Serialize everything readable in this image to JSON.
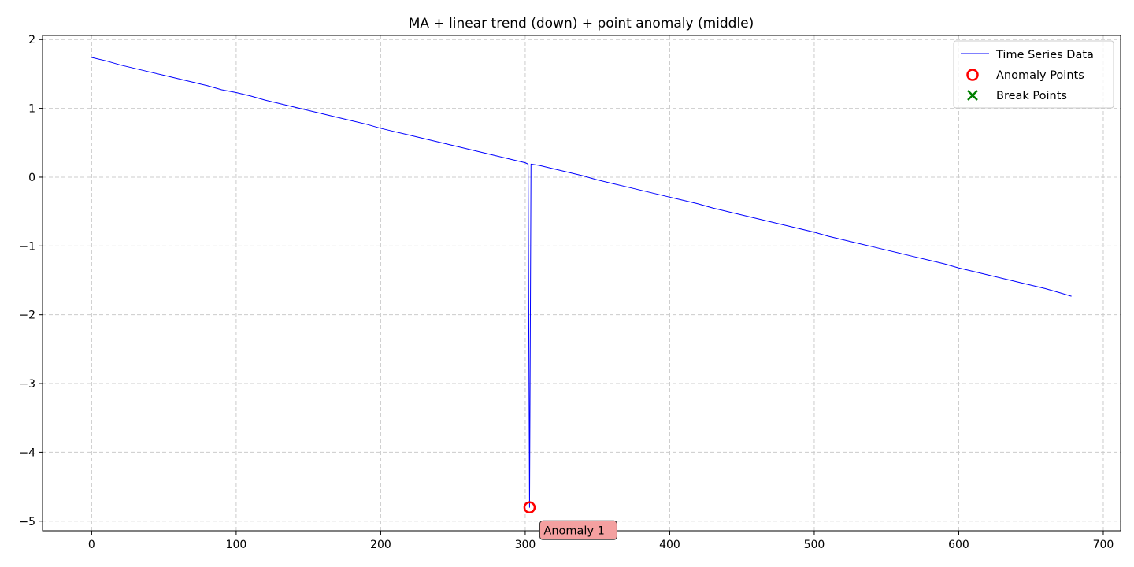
{
  "chart_data": {
    "type": "line",
    "title": "MA + linear trend (down) + point anomaly (middle)",
    "xlabel": "",
    "ylabel": "",
    "xlim": [
      -34,
      712
    ],
    "ylim": [
      -5.14,
      2.06
    ],
    "x_ticks": [
      0,
      100,
      200,
      300,
      400,
      500,
      600,
      700
    ],
    "y_ticks": [
      2,
      1,
      0,
      -1,
      -2,
      -3,
      -4,
      -5
    ],
    "y_tick_labels": [
      "2",
      "1",
      "0",
      "−1",
      "−2",
      "−3",
      "−4",
      "−5"
    ],
    "grid": true,
    "legend_position": "top-right",
    "series": [
      {
        "name": "Time Series Data",
        "color": "#0000ff",
        "x": [
          0,
          10,
          20,
          30,
          40,
          50,
          60,
          70,
          80,
          90,
          100,
          110,
          120,
          130,
          140,
          150,
          160,
          170,
          180,
          190,
          200,
          210,
          220,
          230,
          240,
          250,
          260,
          270,
          280,
          290,
          300,
          301,
          302,
          303,
          304,
          310,
          320,
          330,
          340,
          350,
          360,
          370,
          380,
          390,
          400,
          410,
          420,
          430,
          440,
          450,
          460,
          470,
          480,
          490,
          500,
          510,
          520,
          530,
          540,
          550,
          560,
          570,
          580,
          590,
          600,
          610,
          620,
          630,
          640,
          650,
          660,
          670,
          678
        ],
        "y": [
          1.74,
          1.69,
          1.63,
          1.58,
          1.53,
          1.48,
          1.43,
          1.38,
          1.33,
          1.27,
          1.23,
          1.18,
          1.12,
          1.07,
          1.02,
          0.97,
          0.92,
          0.87,
          0.82,
          0.77,
          0.71,
          0.66,
          0.61,
          0.56,
          0.51,
          0.46,
          0.41,
          0.36,
          0.31,
          0.26,
          0.21,
          0.2,
          0.19,
          -4.8,
          0.19,
          0.17,
          0.12,
          0.07,
          0.02,
          -0.04,
          -0.09,
          -0.14,
          -0.19,
          -0.24,
          -0.29,
          -0.34,
          -0.39,
          -0.45,
          -0.5,
          -0.55,
          -0.6,
          -0.65,
          -0.7,
          -0.75,
          -0.8,
          -0.86,
          -0.91,
          -0.96,
          -1.01,
          -1.06,
          -1.11,
          -1.16,
          -1.21,
          -1.26,
          -1.32,
          -1.37,
          -1.42,
          -1.47,
          -1.52,
          -1.57,
          -1.62,
          -1.68,
          -1.73
        ]
      }
    ],
    "anomaly_points": {
      "name": "Anomaly Points",
      "color": "#ff0000",
      "points": [
        {
          "x": 303,
          "y": -4.8,
          "label": "Anomaly 1"
        }
      ]
    },
    "break_points": {
      "name": "Break Points",
      "color": "#008000",
      "points": []
    },
    "annotation_style": {
      "fill": "#f4a0a0",
      "border": "#333333"
    }
  }
}
